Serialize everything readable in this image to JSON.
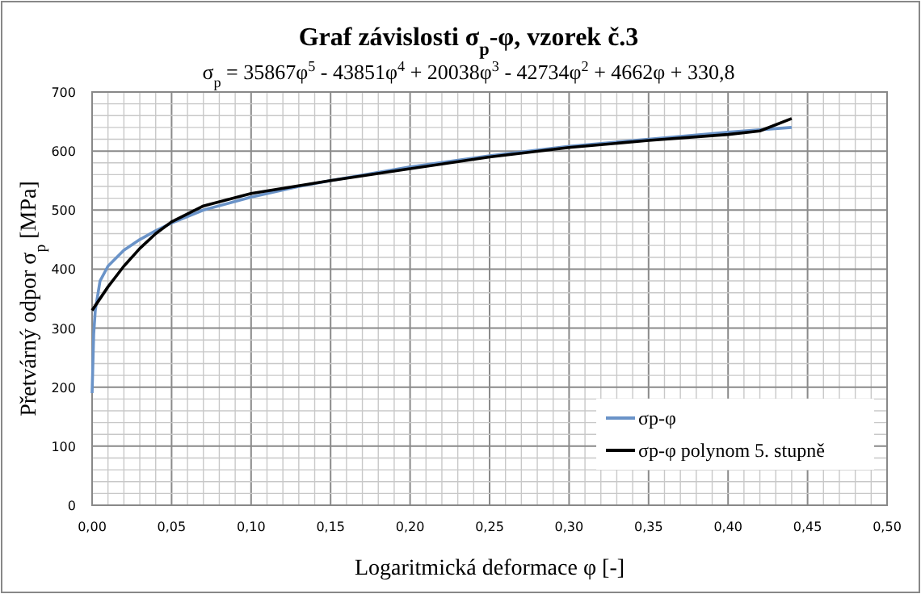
{
  "chart_data": {
    "type": "line",
    "title": "Graf závislosti σ$_{p}$-φ, vzorek č.3",
    "subtitle": "σ$_{p}$  = 35867φ$^{5}$ - 43851φ$^{4}$ + 20038φ$^{3}$ - 42734φ$^{2}$ + 4662φ + 330,8",
    "xlabel": "Logaritmická deformace φ [-]",
    "ylabel": "Přetvárný odpor σ$_{p}$ [MPa]",
    "xlim": [
      0,
      0.5
    ],
    "ylim": [
      0,
      700
    ],
    "xticks": [
      {
        "value": 0,
        "label": "0,00"
      },
      {
        "value": 0.01,
        "label": null
      },
      {
        "value": 0.02,
        "label": null
      },
      {
        "value": 0.03,
        "label": null
      },
      {
        "value": 0.04,
        "label": null
      },
      {
        "value": 0.05,
        "label": "0,05"
      },
      {
        "value": 0.06,
        "label": null
      },
      {
        "value": 0.07,
        "label": null
      },
      {
        "value": 0.08,
        "label": null
      },
      {
        "value": 0.09,
        "label": null
      },
      {
        "value": 0.1,
        "label": "0,10"
      },
      {
        "value": 0.11,
        "label": null
      },
      {
        "value": 0.12,
        "label": null
      },
      {
        "value": 0.13,
        "label": null
      },
      {
        "value": 0.14,
        "label": null
      },
      {
        "value": 0.15,
        "label": "0,15"
      },
      {
        "value": 0.16,
        "label": null
      },
      {
        "value": 0.17,
        "label": null
      },
      {
        "value": 0.18,
        "label": null
      },
      {
        "value": 0.19,
        "label": null
      },
      {
        "value": 0.2,
        "label": "0,20"
      },
      {
        "value": 0.21,
        "label": null
      },
      {
        "value": 0.22,
        "label": null
      },
      {
        "value": 0.23,
        "label": null
      },
      {
        "value": 0.24,
        "label": null
      },
      {
        "value": 0.25,
        "label": "0,25"
      },
      {
        "value": 0.26,
        "label": null
      },
      {
        "value": 0.27,
        "label": null
      },
      {
        "value": 0.28,
        "label": null
      },
      {
        "value": 0.29,
        "label": null
      },
      {
        "value": 0.3,
        "label": "0,30"
      },
      {
        "value": 0.31,
        "label": null
      },
      {
        "value": 0.32,
        "label": null
      },
      {
        "value": 0.33,
        "label": null
      },
      {
        "value": 0.34,
        "label": null
      },
      {
        "value": 0.35,
        "label": "0,35"
      },
      {
        "value": 0.36,
        "label": null
      },
      {
        "value": 0.37,
        "label": null
      },
      {
        "value": 0.38,
        "label": null
      },
      {
        "value": 0.39,
        "label": null
      },
      {
        "value": 0.4,
        "label": "0,40"
      },
      {
        "value": 0.41,
        "label": null
      },
      {
        "value": 0.42,
        "label": null
      },
      {
        "value": 0.43,
        "label": null
      },
      {
        "value": 0.44,
        "label": null
      },
      {
        "value": 0.45,
        "label": "0,45"
      },
      {
        "value": 0.46,
        "label": null
      },
      {
        "value": 0.47,
        "label": null
      },
      {
        "value": 0.48,
        "label": null
      },
      {
        "value": 0.49,
        "label": null
      },
      {
        "value": 0.5,
        "label": "0,50"
      }
    ],
    "yticks": [
      0,
      {
        "value": 20,
        "label": null
      },
      {
        "value": 40,
        "label": null
      },
      {
        "value": 60,
        "label": null
      },
      {
        "value": 80,
        "label": null
      },
      100,
      {
        "value": 120,
        "label": null
      },
      {
        "value": 140,
        "label": null
      },
      {
        "value": 160,
        "label": null
      },
      {
        "value": 180,
        "label": null
      },
      200,
      {
        "value": 220,
        "label": null
      },
      {
        "value": 240,
        "label": null
      },
      {
        "value": 260,
        "label": null
      },
      {
        "value": 280,
        "label": null
      },
      300,
      {
        "value": 320,
        "label": null
      },
      {
        "value": 340,
        "label": null
      },
      {
        "value": 360,
        "label": null
      },
      {
        "value": 380,
        "label": null
      },
      400,
      {
        "value": 420,
        "label": null
      },
      {
        "value": 440,
        "label": null
      },
      {
        "value": 460,
        "label": null
      },
      {
        "value": 480,
        "label": null
      },
      500,
      {
        "value": 520,
        "label": null
      },
      {
        "value": 540,
        "label": null
      },
      {
        "value": 560,
        "label": null
      },
      {
        "value": 580,
        "label": null
      },
      600,
      {
        "value": 620,
        "label": null
      },
      {
        "value": 640,
        "label": null
      },
      {
        "value": 660,
        "label": null
      },
      {
        "value": 680,
        "label": null
      },
      700
    ],
    "grid": true,
    "legend": "bottom right",
    "marker": "none",
    "line_style": "solid",
    "series": [
      {
        "name": "σp-φ",
        "color": "#6a93c8",
        "x": [
          0,
          0.001,
          0.002,
          0.005,
          0.01,
          0.02,
          0.03,
          0.04,
          0.05,
          0.07,
          0.1,
          0.13,
          0.15,
          0.2,
          0.25,
          0.3,
          0.35,
          0.4,
          0.44
        ],
        "values": [
          190,
          290,
          330,
          380,
          405,
          432,
          450,
          465,
          478,
          500,
          522,
          540,
          550,
          573,
          592,
          608,
          620,
          632,
          640
        ]
      },
      {
        "name": "σp-φ polynom 5. stupně",
        "color": "#000000",
        "x": [
          0,
          0.01,
          0.02,
          0.03,
          0.04,
          0.05,
          0.07,
          0.1,
          0.15,
          0.2,
          0.25,
          0.3,
          0.35,
          0.4,
          0.42,
          0.44
        ],
        "values": [
          330,
          370,
          405,
          435,
          460,
          480,
          507,
          528,
          550,
          570,
          590,
          606,
          618,
          628,
          634,
          655
        ]
      }
    ]
  }
}
